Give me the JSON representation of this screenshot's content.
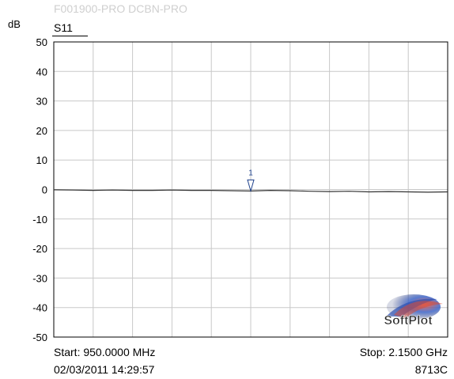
{
  "header": {
    "faded_title": "F001900-PRO  DCBN-PRO",
    "unit": "dB",
    "trace": "S11"
  },
  "footer": {
    "start": "Start: 950.0000 MHz",
    "stop": "Stop: 2.1500 GHz",
    "timestamp": "02/03/2011 14:29:57",
    "model": "8713C"
  },
  "logo": {
    "text": "SoftPlot"
  },
  "colors": {
    "grid": "#c8c8c8",
    "trace": "#333333",
    "marker": "#1c3f8a",
    "faded_text": "#cfcfcf"
  },
  "chart_data": {
    "type": "line",
    "xlabel": "",
    "ylabel": "dB",
    "xlim": [
      950,
      2150
    ],
    "ylim": [
      -50,
      50
    ],
    "x_grid_divisions": 10,
    "grid": true,
    "yticks": [
      50,
      40,
      30,
      20,
      10,
      0,
      -10,
      -20,
      -30,
      -40,
      -50
    ],
    "series": [
      {
        "name": "S11",
        "x": [
          950,
          1010,
          1070,
          1130,
          1190,
          1250,
          1310,
          1370,
          1430,
          1490,
          1550,
          1610,
          1670,
          1730,
          1790,
          1850,
          1910,
          1970,
          2030,
          2090,
          2150
        ],
        "values": [
          -0.1,
          -0.2,
          -0.3,
          -0.2,
          -0.3,
          -0.3,
          -0.2,
          -0.3,
          -0.3,
          -0.4,
          -0.5,
          -0.3,
          -0.4,
          -0.6,
          -0.7,
          -0.6,
          -0.8,
          -0.7,
          -0.8,
          -0.9,
          -0.8
        ]
      }
    ],
    "markers": [
      {
        "label": "1",
        "x": 1550,
        "y": -0.5
      }
    ]
  }
}
